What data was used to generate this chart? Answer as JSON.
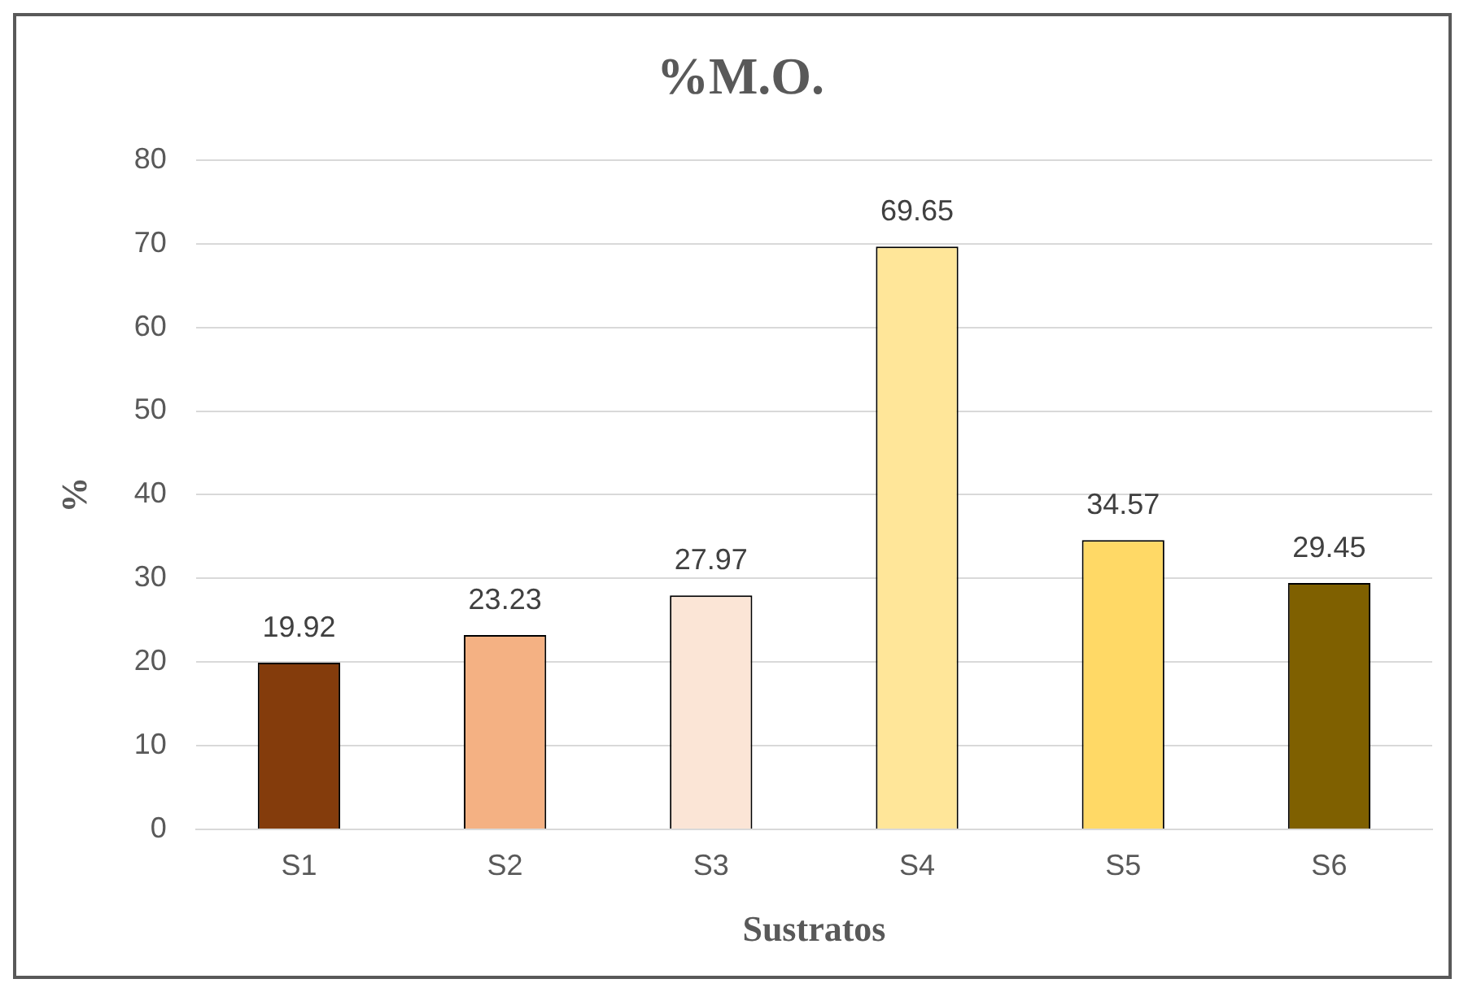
{
  "chart_data": {
    "type": "bar",
    "title": "%M.O.",
    "xlabel": "Sustratos",
    "ylabel": "%",
    "categories": [
      "S1",
      "S2",
      "S3",
      "S4",
      "S5",
      "S6"
    ],
    "values": [
      19.92,
      23.23,
      27.97,
      69.65,
      34.57,
      29.45
    ],
    "colors": [
      "#843c0c",
      "#f4b183",
      "#fbe5d6",
      "#ffe699",
      "#ffd966",
      "#7f6000"
    ],
    "ylim": [
      0,
      80
    ],
    "yticks": [
      0,
      10,
      20,
      30,
      40,
      50,
      60,
      70,
      80
    ],
    "grid": "y",
    "data_labels": true,
    "legend": false
  }
}
